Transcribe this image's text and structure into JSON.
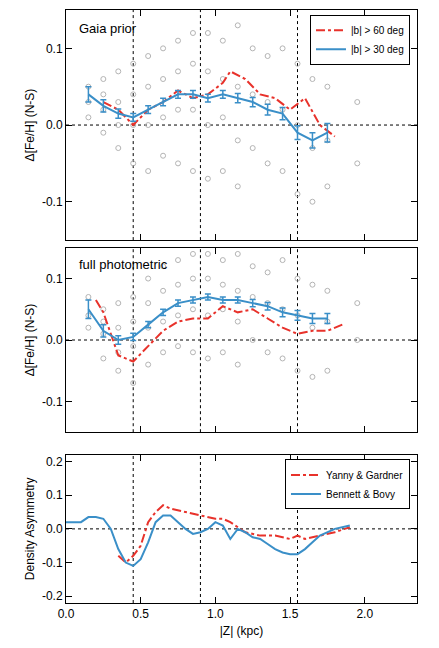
{
  "chart_data": [
    {
      "type": "line",
      "annotation": "Gaia prior",
      "y_label": "Δ[Fe/H] (N-S)",
      "xlim": [
        0,
        2.35
      ],
      "xticks": [
        {
          "value": 0,
          "label": "0.0"
        },
        {
          "value": 0.5,
          "label": "0.5"
        },
        {
          "value": 1,
          "label": "1.0"
        },
        {
          "value": 1.5,
          "label": "1.5"
        },
        {
          "value": 2,
          "label": "2.0"
        }
      ],
      "ylim": [
        -0.15,
        0.15
      ],
      "yticks": [
        {
          "value": -0.1,
          "label": "-0.1"
        },
        {
          "value": 0,
          "label": "0.0"
        },
        {
          "value": 0.1,
          "label": "0.1"
        }
      ],
      "tick_labels": "y",
      "legend": "top right",
      "reference_lines": {
        "x": [
          0.45,
          0.9,
          1.55
        ],
        "y": [
          0
        ]
      },
      "series": [
        {
          "type": "scatter",
          "marker": "circle-open",
          "color": "#b4b4b4",
          "x": [
            0.15,
            0.15,
            0.15,
            0.25,
            0.25,
            0.25,
            0.25,
            0.35,
            0.35,
            0.35,
            0.35,
            0.45,
            0.45,
            0.45,
            0.45,
            0.55,
            0.55,
            0.55,
            0.55,
            0.65,
            0.65,
            0.65,
            0.65,
            0.75,
            0.75,
            0.75,
            0.75,
            0.85,
            0.85,
            0.85,
            0.85,
            0.95,
            0.95,
            0.95,
            0.95,
            1.05,
            1.05,
            1.05,
            1.05,
            1.15,
            1.15,
            1.15,
            1.15,
            1.25,
            1.25,
            1.25,
            1.35,
            1.35,
            1.35,
            1.45,
            1.45,
            1.45,
            1.55,
            1.55,
            1.55,
            1.65,
            1.65,
            1.65,
            1.75,
            1.75,
            1.75,
            1.95,
            1.95
          ],
          "values": [
            0.05,
            0.03,
            0.01,
            0.06,
            0.02,
            -0.01,
            0.04,
            0.07,
            0.03,
            0.0,
            -0.03,
            0.08,
            0.04,
            0.0,
            -0.05,
            0.09,
            0.05,
            0.0,
            -0.06,
            0.1,
            0.06,
            0.01,
            -0.04,
            0.11,
            0.07,
            0.02,
            -0.05,
            0.12,
            0.08,
            0.02,
            -0.06,
            0.12,
            0.07,
            0.0,
            -0.07,
            0.11,
            0.06,
            0.01,
            -0.06,
            0.13,
            0.05,
            -0.02,
            -0.08,
            0.1,
            0.04,
            -0.03,
            0.09,
            0.03,
            -0.05,
            0.1,
            0.02,
            -0.06,
            0.08,
            0.0,
            -0.09,
            0.06,
            -0.03,
            -0.1,
            0.05,
            -0.02,
            -0.08,
            0.03,
            -0.05
          ]
        },
        {
          "name": "|b| > 60 deg",
          "color": "#e8322b",
          "line_style": "dashdot",
          "x": [
            0.25,
            0.35,
            0.45,
            0.55,
            0.65,
            0.75,
            0.85,
            0.95,
            1.05,
            1.1,
            1.2,
            1.3,
            1.4,
            1.5,
            1.6,
            1.7,
            1.8
          ],
          "values": [
            0.03,
            0.02,
            0.0,
            0.02,
            0.03,
            0.045,
            0.035,
            0.04,
            0.055,
            0.07,
            0.06,
            0.04,
            0.035,
            0.02,
            0.035,
            0.0,
            -0.015
          ]
        },
        {
          "name": "|b| > 30 deg",
          "color": "#3a8fc8",
          "line_style": "solid",
          "x": [
            0.15,
            0.25,
            0.35,
            0.45,
            0.55,
            0.65,
            0.75,
            0.85,
            0.95,
            1.05,
            1.15,
            1.25,
            1.35,
            1.45,
            1.55,
            1.65,
            1.75
          ],
          "values": [
            0.04,
            0.025,
            0.015,
            0.01,
            0.02,
            0.03,
            0.04,
            0.04,
            0.035,
            0.04,
            0.035,
            0.03,
            0.02,
            0.015,
            -0.01,
            -0.02,
            -0.01
          ],
          "errors": [
            0.01,
            0.008,
            0.006,
            0.005,
            0.005,
            0.005,
            0.005,
            0.005,
            0.005,
            0.005,
            0.006,
            0.006,
            0.007,
            0.008,
            0.009,
            0.01,
            0.012
          ]
        }
      ]
    },
    {
      "type": "line",
      "annotation": "full photometric",
      "y_label": "Δ[Fe/H] (N-S)",
      "xlim": [
        0,
        2.35
      ],
      "xticks": [
        {
          "value": 0,
          "label": "0.0"
        },
        {
          "value": 0.5,
          "label": "0.5"
        },
        {
          "value": 1,
          "label": "1.0"
        },
        {
          "value": 1.5,
          "label": "1.5"
        },
        {
          "value": 2,
          "label": "2.0"
        }
      ],
      "ylim": [
        -0.15,
        0.15
      ],
      "yticks": [
        {
          "value": -0.1,
          "label": "-0.1"
        },
        {
          "value": 0,
          "label": "0.0"
        },
        {
          "value": 0.1,
          "label": "0.1"
        }
      ],
      "tick_labels": "y",
      "reference_lines": {
        "x": [
          0.45,
          0.9,
          1.55
        ],
        "y": [
          0
        ]
      },
      "series": [
        {
          "type": "scatter",
          "marker": "circle-open",
          "color": "#b4b4b4",
          "x": [
            0.15,
            0.15,
            0.15,
            0.25,
            0.25,
            0.25,
            0.25,
            0.35,
            0.35,
            0.35,
            0.35,
            0.45,
            0.45,
            0.45,
            0.45,
            0.55,
            0.55,
            0.55,
            0.55,
            0.65,
            0.65,
            0.65,
            0.65,
            0.75,
            0.75,
            0.75,
            0.75,
            0.85,
            0.85,
            0.85,
            0.85,
            0.95,
            0.95,
            0.95,
            0.95,
            1.05,
            1.05,
            1.05,
            1.05,
            1.15,
            1.15,
            1.15,
            1.15,
            1.25,
            1.25,
            1.25,
            1.35,
            1.35,
            1.35,
            1.45,
            1.45,
            1.45,
            1.55,
            1.55,
            1.55,
            1.65,
            1.65,
            1.65,
            1.75,
            1.75,
            1.75,
            1.95,
            1.95
          ],
          "values": [
            0.07,
            0.04,
            0.02,
            0.05,
            0.01,
            -0.03,
            0.03,
            0.06,
            0.02,
            -0.02,
            -0.05,
            0.07,
            0.03,
            -0.01,
            -0.07,
            0.1,
            0.06,
            0.02,
            -0.04,
            0.12,
            0.08,
            0.03,
            -0.02,
            0.13,
            0.09,
            0.04,
            -0.01,
            0.14,
            0.1,
            0.05,
            -0.02,
            0.14,
            0.1,
            0.04,
            -0.03,
            0.13,
            0.09,
            0.05,
            -0.02,
            0.14,
            0.08,
            0.03,
            -0.04,
            0.12,
            0.07,
            0.0,
            0.11,
            0.06,
            -0.02,
            0.13,
            0.05,
            -0.03,
            0.1,
            0.04,
            -0.05,
            0.09,
            0.02,
            -0.06,
            0.08,
            0.03,
            -0.05,
            0.06,
            0.0
          ]
        },
        {
          "name": "|b| > 60 deg",
          "color": "#e8322b",
          "line_style": "dashdot",
          "x": [
            0.2,
            0.25,
            0.35,
            0.45,
            0.55,
            0.65,
            0.75,
            0.85,
            0.95,
            1.05,
            1.15,
            1.25,
            1.35,
            1.45,
            1.55,
            1.65,
            1.75,
            1.85
          ],
          "values": [
            0.065,
            0.045,
            -0.025,
            -0.035,
            -0.01,
            0.015,
            0.03,
            0.035,
            0.035,
            0.055,
            0.045,
            0.05,
            0.035,
            0.02,
            0.01,
            0.015,
            0.015,
            0.025
          ]
        },
        {
          "name": "|b| > 30 deg",
          "color": "#3a8fc8",
          "line_style": "solid",
          "x": [
            0.15,
            0.25,
            0.35,
            0.45,
            0.55,
            0.65,
            0.75,
            0.85,
            0.95,
            1.05,
            1.15,
            1.25,
            1.35,
            1.45,
            1.55,
            1.65,
            1.75
          ],
          "values": [
            0.05,
            0.015,
            0.0,
            0.005,
            0.025,
            0.045,
            0.06,
            0.065,
            0.07,
            0.065,
            0.065,
            0.06,
            0.055,
            0.045,
            0.04,
            0.035,
            0.035
          ],
          "errors": [
            0.015,
            0.01,
            0.007,
            0.006,
            0.005,
            0.005,
            0.005,
            0.005,
            0.005,
            0.005,
            0.005,
            0.006,
            0.006,
            0.007,
            0.008,
            0.008,
            0.008
          ]
        }
      ]
    },
    {
      "type": "line",
      "y_label": "Density Asymmetry",
      "x_label": "|Z| (kpc)",
      "xlim": [
        0,
        2.35
      ],
      "xticks": [
        {
          "value": 0,
          "label": "0.0"
        },
        {
          "value": 0.5,
          "label": "0.5"
        },
        {
          "value": 1,
          "label": "1.0"
        },
        {
          "value": 1.5,
          "label": "1.5"
        },
        {
          "value": 2,
          "label": "2.0"
        }
      ],
      "ylim": [
        -0.22,
        0.22
      ],
      "yticks": [
        {
          "value": -0.2,
          "label": "-0.2"
        },
        {
          "value": -0.1,
          "label": "-0.1"
        },
        {
          "value": 0,
          "label": "0.0"
        },
        {
          "value": 0.1,
          "label": "0.1"
        },
        {
          "value": 0.2,
          "label": "0.2"
        }
      ],
      "legend": "top right",
      "reference_lines": {
        "x": [
          0.45,
          0.9,
          1.55
        ],
        "y": [
          0
        ]
      },
      "series": [
        {
          "name": "Yanny & Gardner",
          "color": "#e8322b",
          "line_style": "dashdot",
          "x": [
            0.35,
            0.4,
            0.45,
            0.5,
            0.55,
            0.6,
            0.65,
            0.7,
            0.8,
            0.9,
            1.0,
            1.05,
            1.1,
            1.2,
            1.3,
            1.4,
            1.5,
            1.55,
            1.6,
            1.7,
            1.8,
            1.9
          ],
          "values": [
            -0.08,
            -0.1,
            -0.08,
            -0.05,
            0.02,
            0.05,
            0.07,
            0.06,
            0.05,
            0.04,
            0.03,
            0.03,
            0.02,
            -0.01,
            -0.02,
            -0.02,
            -0.03,
            -0.02,
            -0.03,
            -0.02,
            -0.01,
            0.005
          ]
        },
        {
          "name": "Bennett & Bovy",
          "color": "#3a8fc8",
          "line_style": "solid",
          "x": [
            0.0,
            0.05,
            0.1,
            0.15,
            0.2,
            0.25,
            0.3,
            0.35,
            0.4,
            0.45,
            0.5,
            0.55,
            0.6,
            0.65,
            0.7,
            0.75,
            0.8,
            0.85,
            0.9,
            0.95,
            1.0,
            1.05,
            1.1,
            1.15,
            1.2,
            1.25,
            1.3,
            1.35,
            1.4,
            1.45,
            1.5,
            1.55,
            1.6,
            1.65,
            1.7,
            1.8,
            1.9
          ],
          "values": [
            0.02,
            0.02,
            0.02,
            0.035,
            0.035,
            0.03,
            0.0,
            -0.06,
            -0.1,
            -0.11,
            -0.09,
            -0.04,
            0.02,
            0.04,
            0.04,
            0.02,
            0.0,
            -0.015,
            -0.01,
            0.0,
            0.02,
            0.01,
            -0.03,
            0.0,
            -0.01,
            -0.025,
            -0.03,
            -0.045,
            -0.06,
            -0.07,
            -0.075,
            -0.075,
            -0.06,
            -0.04,
            -0.02,
            0.0,
            0.01
          ]
        }
      ]
    }
  ]
}
